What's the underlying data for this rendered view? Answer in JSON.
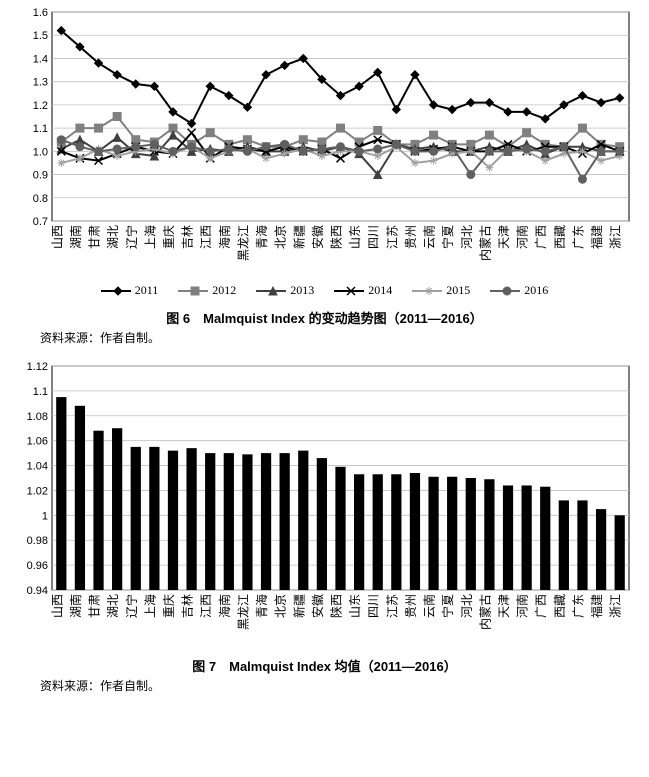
{
  "provinces": [
    "山西",
    "湖南",
    "甘肃",
    "湖北",
    "辽宁",
    "上海",
    "重庆",
    "吉林",
    "江西",
    "海南",
    "黑龙江",
    "青海",
    "北京",
    "新疆",
    "安徽",
    "陕西",
    "山东",
    "四川",
    "江苏",
    "贵州",
    "云南",
    "宁夏",
    "河北",
    "内蒙古",
    "天津",
    "河南",
    "广西",
    "西藏",
    "广东",
    "福建",
    "浙江"
  ],
  "chart6": {
    "title": "图 6　Malmquist Index 的变动趋势图（2011—2016）",
    "source": "资料来源：作者自制。",
    "ylim": [
      0.7,
      1.6
    ],
    "ytick_step": 0.1,
    "series": [
      {
        "name": "2011",
        "color": "#000000",
        "marker": "diamond",
        "data": [
          1.52,
          1.45,
          1.38,
          1.33,
          1.29,
          1.28,
          1.17,
          1.12,
          1.28,
          1.24,
          1.19,
          1.33,
          1.37,
          1.4,
          1.31,
          1.24,
          1.28,
          1.34,
          1.18,
          1.33,
          1.2,
          1.18,
          1.21,
          1.21,
          1.17,
          1.17,
          1.14,
          1.2,
          1.24,
          1.21,
          1.23
        ]
      },
      {
        "name": "2012",
        "color": "#808080",
        "marker": "square",
        "data": [
          1.04,
          1.1,
          1.1,
          1.15,
          1.05,
          1.04,
          1.1,
          1.03,
          1.08,
          1.03,
          1.05,
          1.02,
          1.02,
          1.05,
          1.04,
          1.1,
          1.04,
          1.09,
          1.03,
          1.03,
          1.07,
          1.03,
          1.03,
          1.07,
          1.02,
          1.08,
          1.03,
          1.02,
          1.1,
          1.03,
          1.02
        ]
      },
      {
        "name": "2013",
        "color": "#404040",
        "marker": "triangle",
        "data": [
          1.01,
          1.05,
          1.0,
          1.06,
          0.99,
          0.98,
          1.07,
          1.0,
          1.01,
          1.0,
          1.02,
          1.0,
          1.0,
          1.02,
          1.0,
          1.02,
          0.99,
          0.9,
          1.03,
          1.01,
          1.02,
          1.0,
          1.0,
          1.02,
          1.0,
          1.03,
          0.99,
          1.02,
          1.02,
          1.0,
          1.0
        ]
      },
      {
        "name": "2014",
        "color": "#000000",
        "marker": "x",
        "data": [
          1.0,
          0.97,
          0.96,
          0.99,
          1.02,
          1.0,
          0.99,
          1.08,
          0.97,
          1.02,
          1.01,
          1.0,
          1.02,
          1.0,
          1.01,
          0.97,
          1.02,
          1.05,
          1.03,
          1.0,
          1.01,
          1.02,
          1.0,
          1.0,
          1.03,
          1.0,
          1.02,
          1.02,
          0.99,
          1.03,
          1.0
        ]
      },
      {
        "name": "2015",
        "color": "#a0a0a0",
        "marker": "star",
        "data": [
          0.95,
          0.97,
          1.01,
          0.98,
          1.0,
          1.01,
          0.99,
          1.02,
          0.97,
          1.0,
          1.01,
          0.97,
          0.99,
          1.01,
          0.98,
          1.0,
          1.0,
          0.98,
          1.02,
          0.95,
          0.96,
          0.99,
          1.0,
          0.93,
          1.01,
          1.0,
          0.96,
          0.99,
          1.0,
          0.96,
          0.98
        ]
      },
      {
        "name": "2016",
        "color": "#606060",
        "marker": "circle",
        "data": [
          1.05,
          1.02,
          1.0,
          1.01,
          1.02,
          1.03,
          1.0,
          1.02,
          1.0,
          1.01,
          1.0,
          1.02,
          1.03,
          1.0,
          1.01,
          1.02,
          1.0,
          1.01,
          1.03,
          1.0,
          1.0,
          1.02,
          0.9,
          1.0,
          1.0,
          1.01,
          1.0,
          1.02,
          0.88,
          1.0,
          1.0
        ]
      }
    ],
    "legend_labels": [
      "2011",
      "2012",
      "2013",
      "2014",
      "2015",
      "2016"
    ],
    "background_color": "#ffffff",
    "grid_color": "#c0c0c0",
    "line_width": 2,
    "marker_size": 4
  },
  "chart7": {
    "title": "图 7　Malmquist Index 均值（2011—2016）",
    "source": "资料来源：作者自制。",
    "ylim": [
      0.94,
      1.12
    ],
    "ytick_step": 0.02,
    "data": [
      1.095,
      1.088,
      1.068,
      1.07,
      1.055,
      1.055,
      1.052,
      1.054,
      1.05,
      1.05,
      1.049,
      1.05,
      1.05,
      1.052,
      1.046,
      1.039,
      1.033,
      1.033,
      1.033,
      1.034,
      1.031,
      1.031,
      1.03,
      1.029,
      1.024,
      1.024,
      1.023,
      1.012,
      1.012,
      1.005,
      1.0
    ],
    "bar_color": "#000000",
    "bar_width": 0.55,
    "background_color": "#ffffff",
    "grid_color": "#c0c0c0"
  }
}
